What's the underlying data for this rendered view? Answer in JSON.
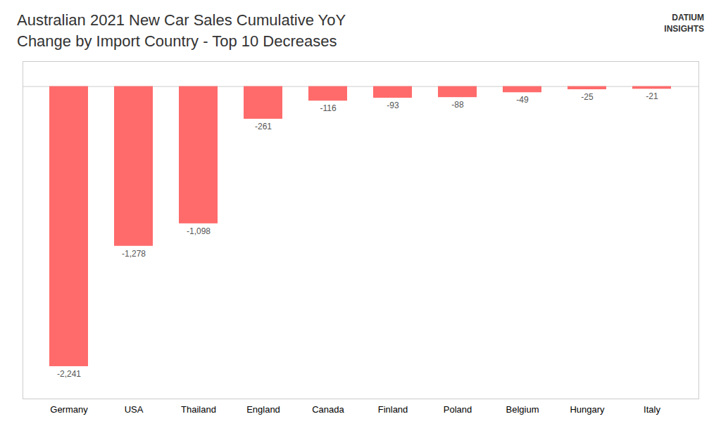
{
  "chart_data": {
    "type": "bar",
    "title": "Australian 2021 New Car Sales Cumulative YoY",
    "subtitle": "Change by Import Country - Top 10 Decreases",
    "annotation": "DATIUM\nINSIGHTS",
    "categories": [
      "Germany",
      "USA",
      "Thailand",
      "England",
      "Canada",
      "Finland",
      "Poland",
      "Belgium",
      "Hungary",
      "Italy"
    ],
    "values": [
      -2241,
      -1278,
      -1098,
      -261,
      -116,
      -93,
      -88,
      -49,
      -25,
      -21
    ],
    "value_labels": [
      "-2,241",
      "-1,278",
      "-1,098",
      "-261",
      "-116",
      "-93",
      "-88",
      "-49",
      "-25",
      "-21"
    ],
    "data_labels": true,
    "color": "#FF6B6B",
    "ylim": [
      -2500,
      200
    ],
    "tick_labels": "x",
    "grid": false
  }
}
